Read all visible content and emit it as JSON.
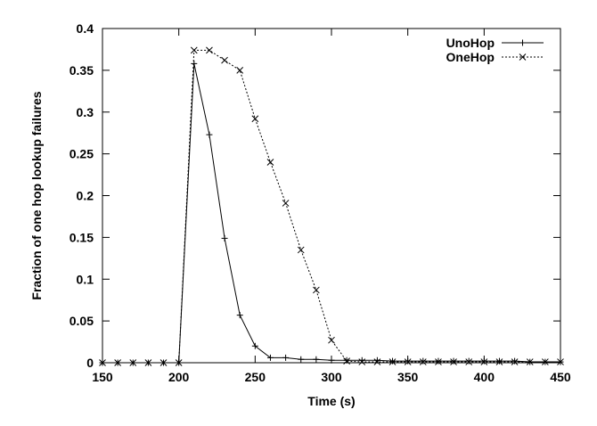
{
  "chart_data": {
    "type": "line",
    "title": "",
    "xlabel": "Time (s)",
    "ylabel": "Fraction of one hop lookup failures",
    "xlim": [
      150,
      450
    ],
    "ylim": [
      0,
      0.4
    ],
    "xticks": [
      "150",
      "200",
      "250",
      "300",
      "350",
      "400",
      "450"
    ],
    "yticks": [
      "0",
      "0.05",
      "0.1",
      "0.15",
      "0.2",
      "0.25",
      "0.3",
      "0.35",
      "0.4"
    ],
    "grid": false,
    "legend_position": "top-right",
    "series": [
      {
        "name": "UnoHop",
        "marker": "plus",
        "line_style": "solid",
        "x": [
          150,
          160,
          170,
          180,
          190,
          200,
          210,
          220,
          230,
          240,
          250,
          260,
          270,
          280,
          290,
          300,
          310,
          320,
          330,
          340,
          350,
          360,
          370,
          380,
          390,
          400,
          410,
          420,
          430,
          440,
          450
        ],
        "y": [
          0,
          0,
          0,
          0,
          0,
          0,
          0.358,
          0.273,
          0.149,
          0.057,
          0.02,
          0.006,
          0.006,
          0.004,
          0.004,
          0.003,
          0.003,
          0.003,
          0.003,
          0.002,
          0.002,
          0.002,
          0.002,
          0.002,
          0.002,
          0.002,
          0.002,
          0.002,
          0.001,
          0.001,
          0.001
        ]
      },
      {
        "name": "OneHop",
        "marker": "x",
        "line_style": "dotted",
        "x": [
          150,
          160,
          170,
          180,
          190,
          200,
          210,
          220,
          230,
          240,
          250,
          260,
          270,
          280,
          290,
          300,
          310,
          320,
          330,
          340,
          350,
          360,
          370,
          380,
          390,
          400,
          410,
          420,
          430,
          440,
          450
        ],
        "y": [
          0,
          0,
          0,
          0,
          0,
          0,
          0.374,
          0.374,
          0.362,
          0.35,
          0.292,
          0.24,
          0.191,
          0.135,
          0.087,
          0.027,
          0.002,
          0.001,
          0.001,
          0.001,
          0.001,
          0.001,
          0.001,
          0.001,
          0.001,
          0.001,
          0.001,
          0.001,
          0.001,
          0.001,
          0.001
        ]
      }
    ]
  }
}
